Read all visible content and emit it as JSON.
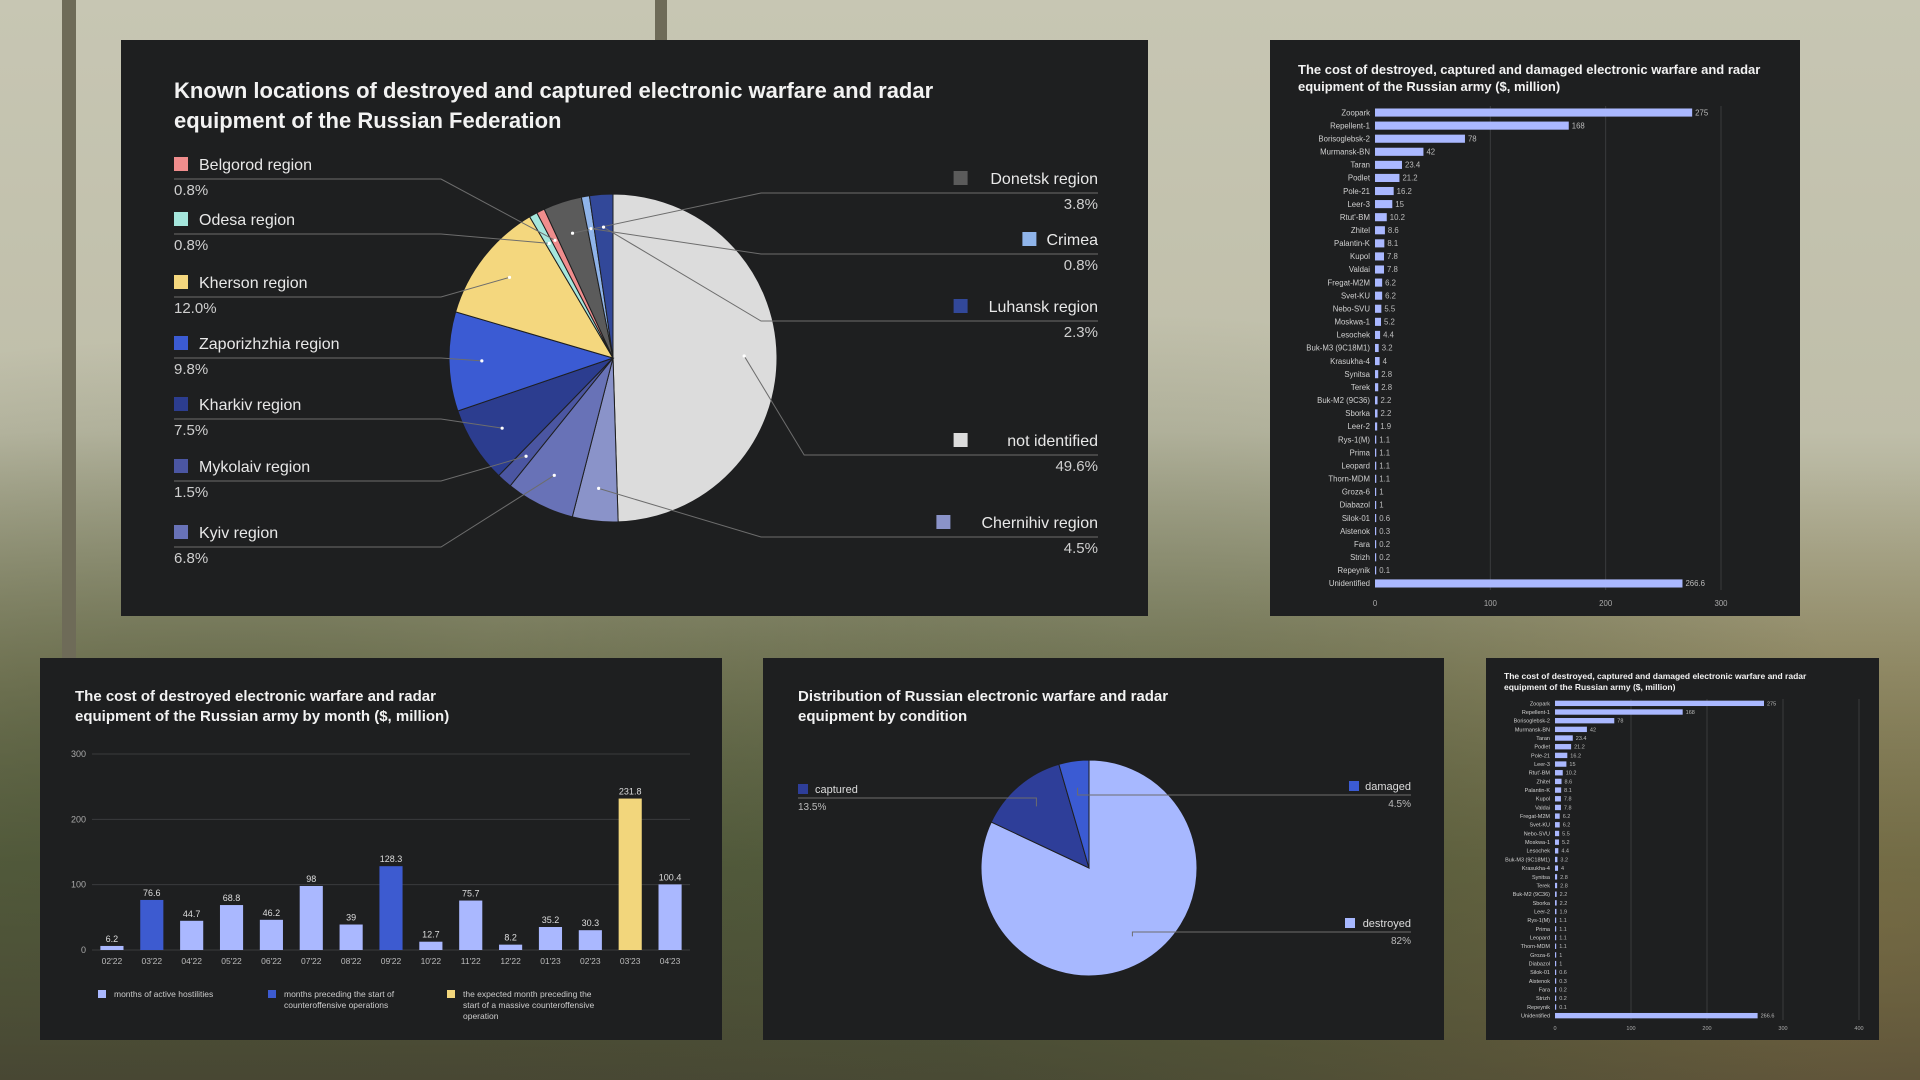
{
  "pie1": {
    "title": "Known locations of destroyed and captured electronic warfare and radar equipment of the Russian Federation",
    "slices": [
      {
        "label": "not identified",
        "value": 49.6,
        "pct": "49.6%",
        "color": "#dcdcdc"
      },
      {
        "label": "Chernihiv region",
        "value": 4.5,
        "pct": "4.5%",
        "color": "#8a93c9"
      },
      {
        "label": "Kyiv region",
        "value": 6.8,
        "pct": "6.8%",
        "color": "#6872b7"
      },
      {
        "label": "Mykolaiv region",
        "value": 1.5,
        "pct": "1.5%",
        "color": "#4b56a2"
      },
      {
        "label": "Kharkiv region",
        "value": 7.5,
        "pct": "7.5%",
        "color": "#2c3d8f"
      },
      {
        "label": "Zaporizhzhia region",
        "value": 9.8,
        "pct": "9.8%",
        "color": "#3b5bd3"
      },
      {
        "label": "Kherson region",
        "value": 12.0,
        "pct": "12.0%",
        "color": "#f4d77e"
      },
      {
        "label": "Odesa region",
        "value": 0.8,
        "pct": "0.8%",
        "color": "#a5e6dc"
      },
      {
        "label": "Belgorod region",
        "value": 0.8,
        "pct": "0.8%",
        "color": "#f08d8d"
      },
      {
        "label": "Donetsk region",
        "value": 3.8,
        "pct": "3.8%",
        "color": "#5b5b5b"
      },
      {
        "label": "Crimea",
        "value": 0.8,
        "pct": "0.8%",
        "color": "#8fb4ea"
      },
      {
        "label": "Luhansk region",
        "value": 2.3,
        "pct": "2.3%",
        "color": "#324899"
      }
    ]
  },
  "chart_data": [
    {
      "type": "pie",
      "title": "Known locations of destroyed and captured electronic warfare and radar equipment of the Russian Federation",
      "labels": [
        "not identified",
        "Chernihiv region",
        "Kyiv region",
        "Mykolaiv region",
        "Kharkiv region",
        "Zaporizhzhia region",
        "Kherson region",
        "Odesa region",
        "Belgorod region",
        "Donetsk region",
        "Crimea",
        "Luhansk region"
      ],
      "values": [
        49.6,
        4.5,
        6.8,
        1.5,
        7.5,
        9.8,
        12.0,
        0.8,
        0.8,
        3.8,
        0.8,
        2.3
      ]
    },
    {
      "type": "bar",
      "orientation": "horizontal",
      "title": "The cost of destroyed, captured and damaged electronic warfare and radar equipment of the Russian army ($, million)",
      "categories": [
        "Zoopark",
        "Repellent-1",
        "Borisoglebsk-2",
        "Murmansk-BN",
        "Taran",
        "Podlet",
        "Pole-21",
        "Leer-3",
        "Rtut'-BM",
        "Zhitel",
        "Palantin-K",
        "Kupol",
        "Valdai",
        "Fregat-M2M",
        "Svet-KU",
        "Nebo-SVU",
        "Moskwa-1",
        "Lesochek",
        "Buk-M3 (9C18M1)",
        "Krasukha-4",
        "Synitsa",
        "Terek",
        "Buk-M2 (9C36)",
        "Sborka",
        "Leer-2",
        "Rys-1(M)",
        "Prima",
        "Leopard",
        "Thorn-MDM",
        "Groza-6",
        "Diabazol",
        "Silok-01",
        "Aistenok",
        "Fara",
        "Strizh",
        "Repeynik",
        "Unidentified"
      ],
      "values": [
        275,
        168,
        78,
        42,
        23.4,
        21.2,
        16.2,
        15,
        10.2,
        8.6,
        8.1,
        7.8,
        7.8,
        6.2,
        6.2,
        5.5,
        5.2,
        4.4,
        3.2,
        4,
        2.8,
        2.8,
        2.2,
        2.2,
        1.9,
        1.1,
        1.1,
        1.1,
        1.1,
        1,
        1,
        0.6,
        0.3,
        0.2,
        0.2,
        0.1,
        266.6
      ],
      "value_labels": [
        "275",
        "168",
        "78",
        "42",
        "23.4",
        "21.2",
        "16.2",
        "15",
        "10.2",
        "8.6",
        "8.1",
        "7.8",
        "7.8",
        "6.2",
        "6.2",
        "5.5",
        "5.2",
        "4.4",
        "3.2",
        "4",
        "2.8",
        "2.8",
        "2.2",
        "2.2",
        "1.9",
        "1.1",
        "1.1",
        "1.1",
        "1.1",
        "1",
        "1",
        "0.6",
        "0.3",
        "0.2",
        "0.2",
        "0.1",
        "266.6"
      ],
      "xlim": [
        0,
        300
      ],
      "x_ticks": [
        "0",
        "100",
        "200",
        "300"
      ],
      "grid": true
    },
    {
      "type": "bar",
      "title": "The cost of destroyed electronic warfare and radar equipment of the Russian army by month ($, million)",
      "categories": [
        "02'22",
        "03'22",
        "04'22",
        "05'22",
        "06'22",
        "07'22",
        "08'22",
        "09'22",
        "10'22",
        "11'22",
        "12'22",
        "01'23",
        "02'23",
        "03'23",
        "04'23"
      ],
      "values": [
        6.2,
        76.6,
        44.7,
        68.8,
        46.2,
        98,
        39,
        128.3,
        12.7,
        75.7,
        8.2,
        35.2,
        30.3,
        231.8,
        100.4
      ],
      "value_labels": [
        "6.2",
        "76.6",
        "44.7",
        "68.8",
        "46.2",
        "98",
        "39",
        "128.3",
        "12.7",
        "75.7",
        "8.2",
        "35.2",
        "30.3",
        "231.8",
        "100.4"
      ],
      "groups": [
        0,
        1,
        0,
        0,
        0,
        0,
        0,
        1,
        0,
        0,
        0,
        0,
        0,
        2,
        0
      ],
      "group_colors": [
        "#aab8ff",
        "#3d5bd0",
        "#f2d67c"
      ],
      "legend": [
        "months of active hostilities",
        "months preceding the start of counteroffensive operations",
        "the expected month preceding the start of a massive counteroffensive operation"
      ],
      "ylim": [
        0,
        300
      ],
      "y_ticks": [
        "0",
        "100",
        "200",
        "300"
      ],
      "grid": true
    },
    {
      "type": "pie",
      "title": "Distribution of Russian electronic warfare and radar equipment by condition",
      "labels": [
        "destroyed",
        "captured",
        "damaged"
      ],
      "values": [
        82,
        13.5,
        4.5
      ],
      "pcts": [
        "82%",
        "13.5%",
        "4.5%"
      ],
      "colors": [
        "#a7b8ff",
        "#2e3e99",
        "#3b5bd3"
      ]
    },
    {
      "type": "bar",
      "orientation": "horizontal",
      "title": "The cost of destroyed, captured and damaged electronic warfare and radar equipment of the Russian army ($, million)",
      "categories": [
        "Zoopark",
        "Repellent-1",
        "Borisoglebsk-2",
        "Murmansk-BN",
        "Taran",
        "Podlet",
        "Pole-21",
        "Leer-3",
        "Rtut'-BM",
        "Zhitel",
        "Palantin-K",
        "Kupol",
        "Valdai",
        "Fregat-M2M",
        "Svet-KU",
        "Nebo-SVU",
        "Moskwa-1",
        "Lesochek",
        "Buk-M3 (9C18M1)",
        "Krasukha-4",
        "Synitsa",
        "Terek",
        "Buk-M2 (9C36)",
        "Sborka",
        "Leer-2",
        "Rys-1(M)",
        "Prima",
        "Leopard",
        "Thorn-MDM",
        "Groza-6",
        "Diabazol",
        "Silok-01",
        "Aistenok",
        "Fara",
        "Strizh",
        "Repeynik",
        "Unidentified"
      ],
      "values": [
        275,
        168,
        78,
        42,
        23.4,
        21.2,
        16.2,
        15,
        10.2,
        8.6,
        8.1,
        7.8,
        7.8,
        6.2,
        6.2,
        5.5,
        5.2,
        4.4,
        3.2,
        4,
        2.8,
        2.8,
        2.2,
        2.2,
        1.9,
        1.1,
        1.1,
        1.1,
        1.1,
        1,
        1,
        0.6,
        0.3,
        0.2,
        0.2,
        0.1,
        266.6
      ],
      "value_labels": [
        "275",
        "168",
        "78",
        "42",
        "23.4",
        "21.2",
        "16.2",
        "15",
        "10.2",
        "8.6",
        "8.1",
        "7.8",
        "7.8",
        "6.2",
        "6.2",
        "5.5",
        "5.2",
        "4.4",
        "3.2",
        "4",
        "2.8",
        "2.8",
        "2.2",
        "2.2",
        "1.9",
        "1.1",
        "1.1",
        "1.1",
        "1.1",
        "1",
        "1",
        "0.6",
        "0.3",
        "0.2",
        "0.2",
        "0.1",
        "266.6"
      ],
      "xlim": [
        0,
        400
      ],
      "x_ticks": [
        "0",
        "100",
        "200",
        "300",
        "400"
      ],
      "grid": true
    }
  ],
  "colors": {
    "panel": "#1e1f20",
    "bar": "#aab8ff",
    "accent": "#3d5bd0",
    "highlight": "#f2d67c"
  }
}
